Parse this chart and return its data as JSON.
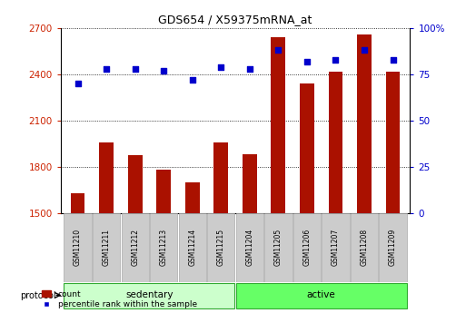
{
  "title": "GDS654 / X59375mRNA_at",
  "samples": [
    "GSM11210",
    "GSM11211",
    "GSM11212",
    "GSM11213",
    "GSM11214",
    "GSM11215",
    "GSM11204",
    "GSM11205",
    "GSM11206",
    "GSM11207",
    "GSM11208",
    "GSM11209"
  ],
  "counts": [
    1630,
    1960,
    1875,
    1780,
    1700,
    1960,
    1880,
    2640,
    2340,
    2415,
    2660,
    2415
  ],
  "percentile_ranks": [
    70,
    78,
    78,
    77,
    72,
    79,
    78,
    88,
    82,
    83,
    88,
    83
  ],
  "groups": [
    "sedentary",
    "sedentary",
    "sedentary",
    "sedentary",
    "sedentary",
    "sedentary",
    "active",
    "active",
    "active",
    "active",
    "active",
    "active"
  ],
  "ylim_left": [
    1500,
    2700
  ],
  "ylim_right": [
    0,
    100
  ],
  "yticks_left": [
    1500,
    1800,
    2100,
    2400,
    2700
  ],
  "yticks_right": [
    0,
    25,
    50,
    75,
    100
  ],
  "bar_color": "#aa1100",
  "dot_color": "#0000cc",
  "sedentary_color": "#ccffcc",
  "active_color": "#66ff66",
  "group_border_color": "#33aa33",
  "tick_label_bg": "#cccccc",
  "bg_color": "#ffffff",
  "plot_bg": "#ffffff",
  "bar_width": 0.5,
  "figsize": [
    5.13,
    3.45
  ],
  "dpi": 100
}
